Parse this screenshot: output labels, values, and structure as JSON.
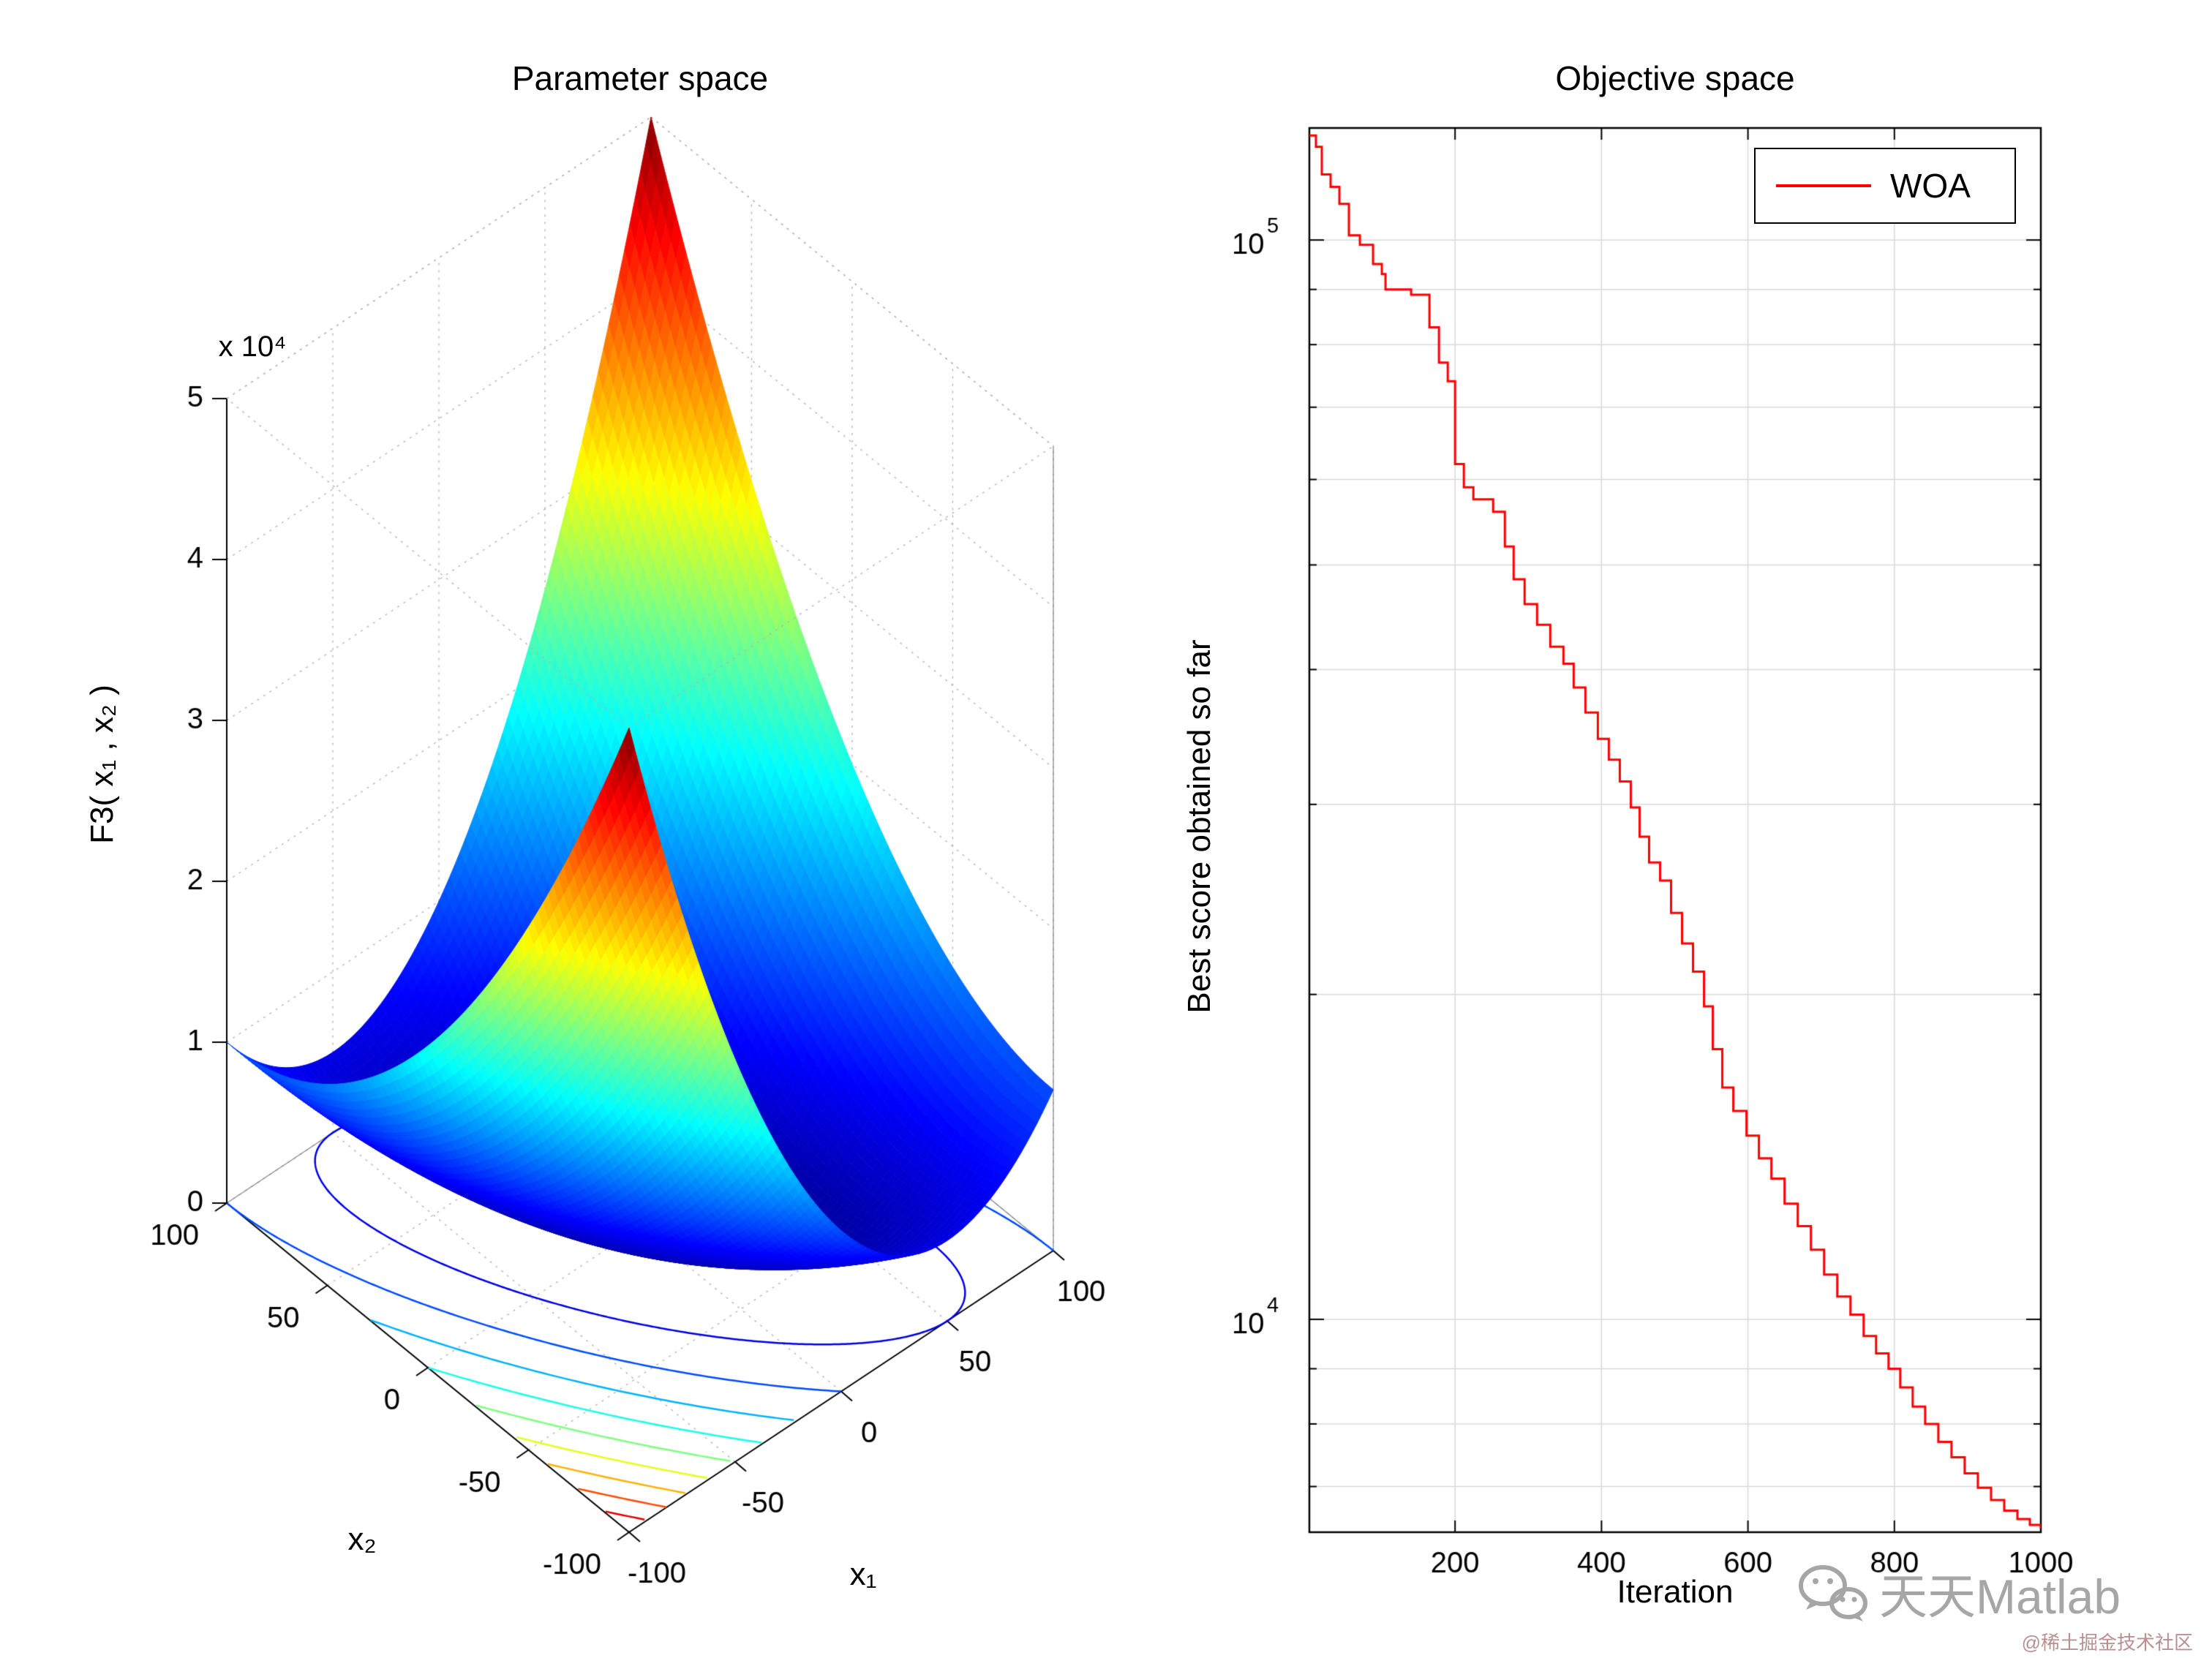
{
  "watermark": {
    "brand": "天天Matlab",
    "footer": "@稀土掘金技术社区"
  },
  "chart_data": [
    {
      "type": "surface",
      "title": "Parameter space",
      "xlabel": "x₁",
      "ylabel": "x₂",
      "zlabel": "F3( x₁ , x₂ )",
      "z_tick_scale": "x 10⁴",
      "x_range": [
        -100,
        100
      ],
      "y_range": [
        -100,
        100
      ],
      "z_range": [
        0,
        50000
      ],
      "x_ticks": [
        -100,
        -50,
        0,
        50,
        100
      ],
      "y_ticks": [
        100,
        50,
        0,
        -50,
        -100
      ],
      "z_ticks": [
        0,
        1,
        2,
        3,
        4,
        5
      ],
      "z_tick_factor": 10000,
      "formula": "x1*x1 + (x1+x2)*(x1+x2)",
      "colormap": "jet",
      "contour_levels": [
        5000,
        10000,
        15000,
        20000,
        25000,
        30000,
        35000,
        40000,
        45000
      ],
      "grid": true
    },
    {
      "type": "line",
      "title": "Objective space",
      "xlabel": "Iteration",
      "ylabel": "Best score obtained so far",
      "yscale": "log",
      "xlim": [
        1,
        1000
      ],
      "ylim": [
        6350,
        127000
      ],
      "x_ticks": [
        200,
        400,
        600,
        800,
        1000
      ],
      "y_tick_exponents": [
        4,
        5
      ],
      "line_color": "#ff0000",
      "legend": {
        "label": "WOA",
        "color": "#ff0000",
        "position": "top-right"
      },
      "series": [
        {
          "name": "WOA",
          "points": [
            [
              1,
              125000
            ],
            [
              10,
              122000
            ],
            [
              18,
              115000
            ],
            [
              30,
              112000
            ],
            [
              42,
              108000
            ],
            [
              55,
              101000
            ],
            [
              70,
              99000
            ],
            [
              88,
              95000
            ],
            [
              100,
              93000
            ],
            [
              105,
              90000
            ],
            [
              140,
              89000
            ],
            [
              165,
              83000
            ],
            [
              178,
              77000
            ],
            [
              190,
              74000
            ],
            [
              200,
              62000
            ],
            [
              212,
              59000
            ],
            [
              225,
              57500
            ],
            [
              252,
              56000
            ],
            [
              268,
              52000
            ],
            [
              280,
              48500
            ],
            [
              295,
              46000
            ],
            [
              312,
              44000
            ],
            [
              330,
              42000
            ],
            [
              348,
              40500
            ],
            [
              362,
              38500
            ],
            [
              378,
              36500
            ],
            [
              395,
              34500
            ],
            [
              410,
              33000
            ],
            [
              425,
              31500
            ],
            [
              440,
              29800
            ],
            [
              452,
              28000
            ],
            [
              465,
              26500
            ],
            [
              480,
              25500
            ],
            [
              495,
              23800
            ],
            [
              510,
              22300
            ],
            [
              525,
              21000
            ],
            [
              540,
              19500
            ],
            [
              552,
              17800
            ],
            [
              565,
              16400
            ],
            [
              580,
              15600
            ],
            [
              598,
              14800
            ],
            [
              615,
              14100
            ],
            [
              632,
              13500
            ],
            [
              650,
              12800
            ],
            [
              668,
              12200
            ],
            [
              686,
              11600
            ],
            [
              704,
              11000
            ],
            [
              722,
              10500
            ],
            [
              740,
              10100
            ],
            [
              758,
              9650
            ],
            [
              775,
              9300
            ],
            [
              792,
              9000
            ],
            [
              808,
              8650
            ],
            [
              825,
              8300
            ],
            [
              842,
              8000
            ],
            [
              860,
              7700
            ],
            [
              878,
              7450
            ],
            [
              896,
              7200
            ],
            [
              914,
              6980
            ],
            [
              932,
              6800
            ],
            [
              950,
              6650
            ],
            [
              968,
              6530
            ],
            [
              985,
              6450
            ],
            [
              1000,
              6400
            ]
          ]
        }
      ]
    }
  ]
}
